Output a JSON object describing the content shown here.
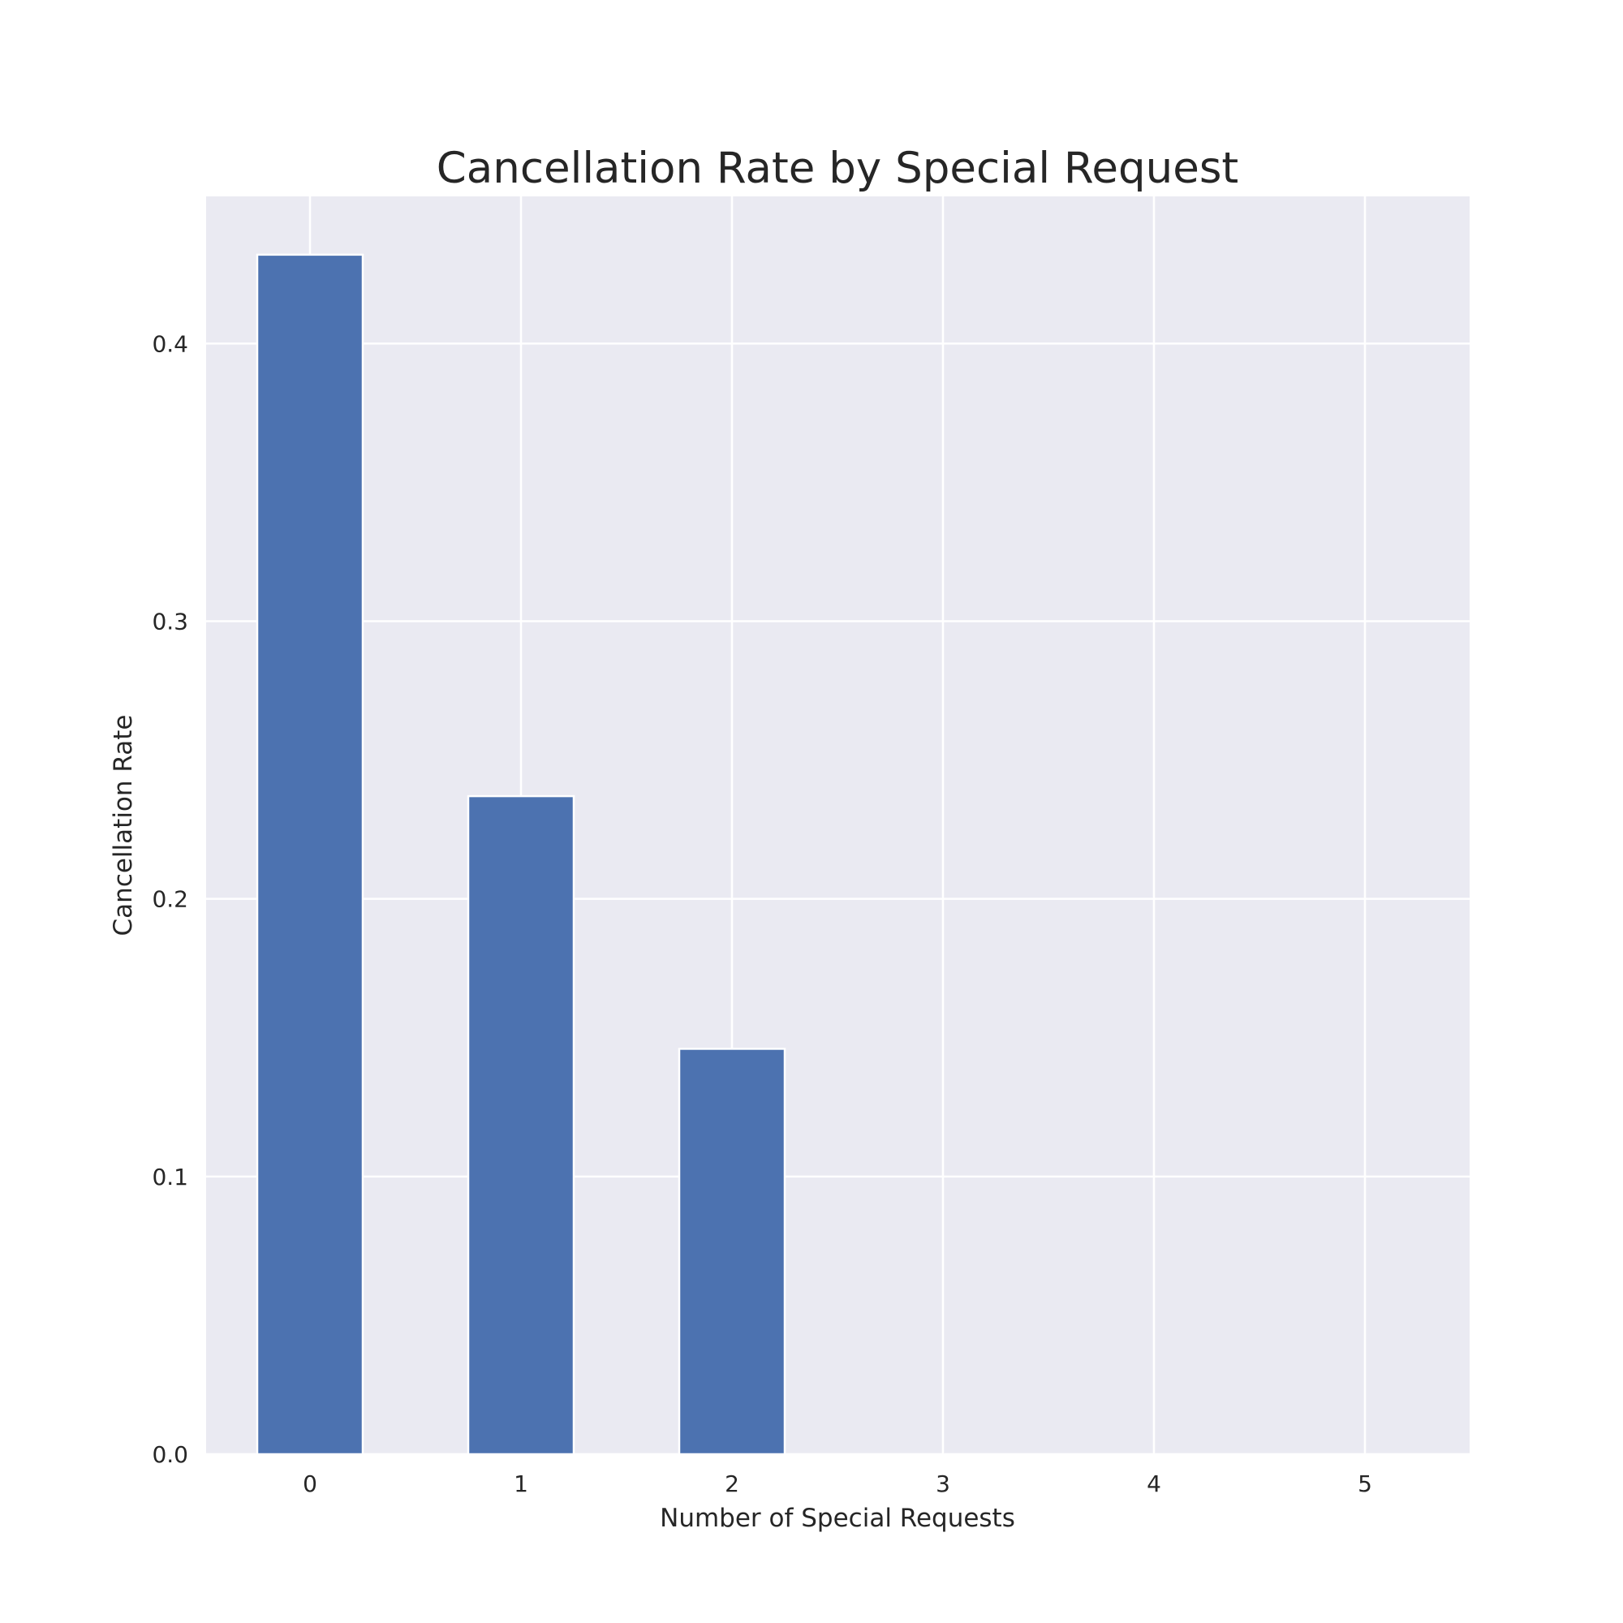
{
  "chart_data": {
    "type": "bar",
    "title": "Cancellation Rate by Special Request",
    "xlabel": "Number of Special Requests",
    "ylabel": "Cancellation Rate",
    "categories": [
      "0",
      "1",
      "2",
      "3",
      "4",
      "5"
    ],
    "values": [
      0.432,
      0.237,
      0.146,
      0.0,
      0.0,
      0.0
    ],
    "ylim": [
      0,
      0.453
    ],
    "yticks": [
      "0.0",
      "0.1",
      "0.2",
      "0.3",
      "0.4"
    ],
    "grid": true,
    "bar_color": "#4c72b0",
    "background_color": "#eaeaf2"
  }
}
